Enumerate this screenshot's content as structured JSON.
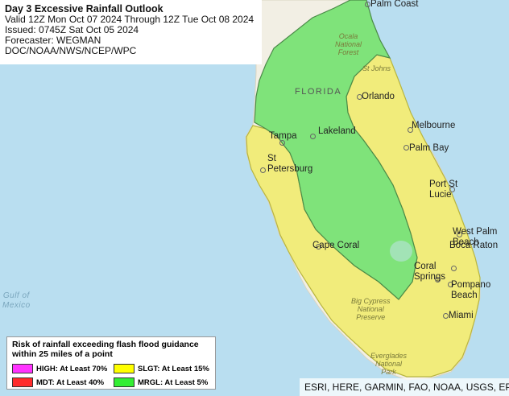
{
  "title": {
    "heading": "Day 3 Excessive Rainfall Outlook",
    "valid": "Valid 12Z Mon Oct 07 2024 Through 12Z Tue Oct 08 2024",
    "issued": "Issued: 0745Z Sat Oct 05 2024",
    "forecaster": "Forecaster: WEGMAN",
    "agency": "DOC/NOAA/NWS/NCEP/WPC"
  },
  "map_labels": {
    "state": "FLORIDA",
    "gulf": "Gulf of\nMexico",
    "ocala": "Ocala\nNational\nForest",
    "st_johns": "St Johns",
    "big_cypress": "Big Cypress\nNational\nPreserve",
    "everglades": "Everglades\nNational\nPark"
  },
  "cities": {
    "palm_coast": "Palm Coast",
    "orlando": "Orlando",
    "melbourne": "Melbourne",
    "palm_bay": "Palm Bay",
    "tampa": "Tampa",
    "lakeland": "Lakeland",
    "st_petersburg": "St\nPetersburg",
    "port_st_lucie": "Port St\nLucie",
    "west_palm_beach": "West Palm\nBeach",
    "cape_coral": "Cape Coral",
    "boca_raton": "Boca Raton",
    "coral_springs": "Coral\nSprings",
    "pompano_beach": "Pompano\nBeach",
    "miami": "Miami"
  },
  "legend": {
    "title_line1": "Risk of rainfall exceeding flash flood guidance",
    "title_line2": "within 25 miles of a point",
    "items": [
      {
        "label": "HIGH: At Least 70%",
        "color": "#ff33ff"
      },
      {
        "label": "SLGT: At Least 15%",
        "color": "#ffff00"
      },
      {
        "label": "MDT: At Least 40%",
        "color": "#ff2b2b"
      },
      {
        "label": "MRGL: At Least 5%",
        "color": "#33ee33"
      }
    ]
  },
  "colors": {
    "water": "#b9def0",
    "land": "#f2efe4",
    "slgt_fill": "#f2ee7c",
    "mrgl_fill": "#7fe37a"
  },
  "attribution": "ESRI, HERE, GARMIN, FAO, NOAA, USGS, EPA"
}
